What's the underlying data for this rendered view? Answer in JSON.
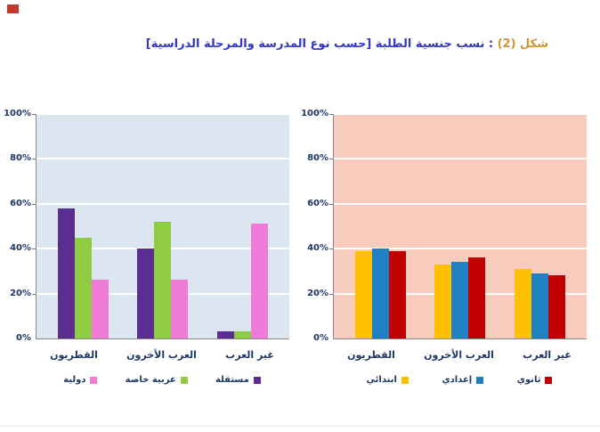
{
  "figure": {
    "marker_color": "#C0392B",
    "title_prefix": "شكل (2)",
    "title_main": ": نسب جنسية الطلبة [حسب نوع المدرسة والمرحلة الدراسية]",
    "title_prefix_color": "#CF9434",
    "title_main_color": "#3436C8",
    "text_color": "#1F3864"
  },
  "chart_data": [
    {
      "type": "bar",
      "categories": [
        "القطريون",
        "العرب الأخرون",
        "غير العرب"
      ],
      "series": [
        {
          "name": "مستقلة",
          "color": "#5B2D8F",
          "values": [
            58,
            40,
            3
          ]
        },
        {
          "name": "عربية خاصة",
          "color": "#8FCC44",
          "values": [
            45,
            52,
            3
          ]
        },
        {
          "name": "دولية",
          "color": "#F07AD8",
          "values": [
            26,
            26,
            51
          ]
        }
      ],
      "ylim": [
        0,
        100
      ],
      "yticks": [
        "100%",
        "80%",
        "60%",
        "40%",
        "20%",
        "0%"
      ],
      "grid": true,
      "plot_bg": "#DCE6F1",
      "legend_position": "bottom",
      "legend_reversed": true
    },
    {
      "type": "bar",
      "categories": [
        "القطريون",
        "العرب الأخرون",
        "غير العرب"
      ],
      "series": [
        {
          "name": "ابتدائي",
          "color": "#FFC000",
          "values": [
            39,
            33,
            31
          ]
        },
        {
          "name": "إعدادي",
          "color": "#2080C4",
          "values": [
            40,
            34,
            29
          ]
        },
        {
          "name": "ثانوي",
          "color": "#C00000",
          "values": [
            39,
            36,
            28
          ]
        }
      ],
      "ylim": [
        0,
        100
      ],
      "yticks": [
        "100%",
        "80%",
        "60%",
        "40%",
        "20%",
        "0%"
      ],
      "grid": true,
      "plot_bg": "#F8CCBC",
      "legend_position": "bottom",
      "legend_reversed": false
    }
  ]
}
